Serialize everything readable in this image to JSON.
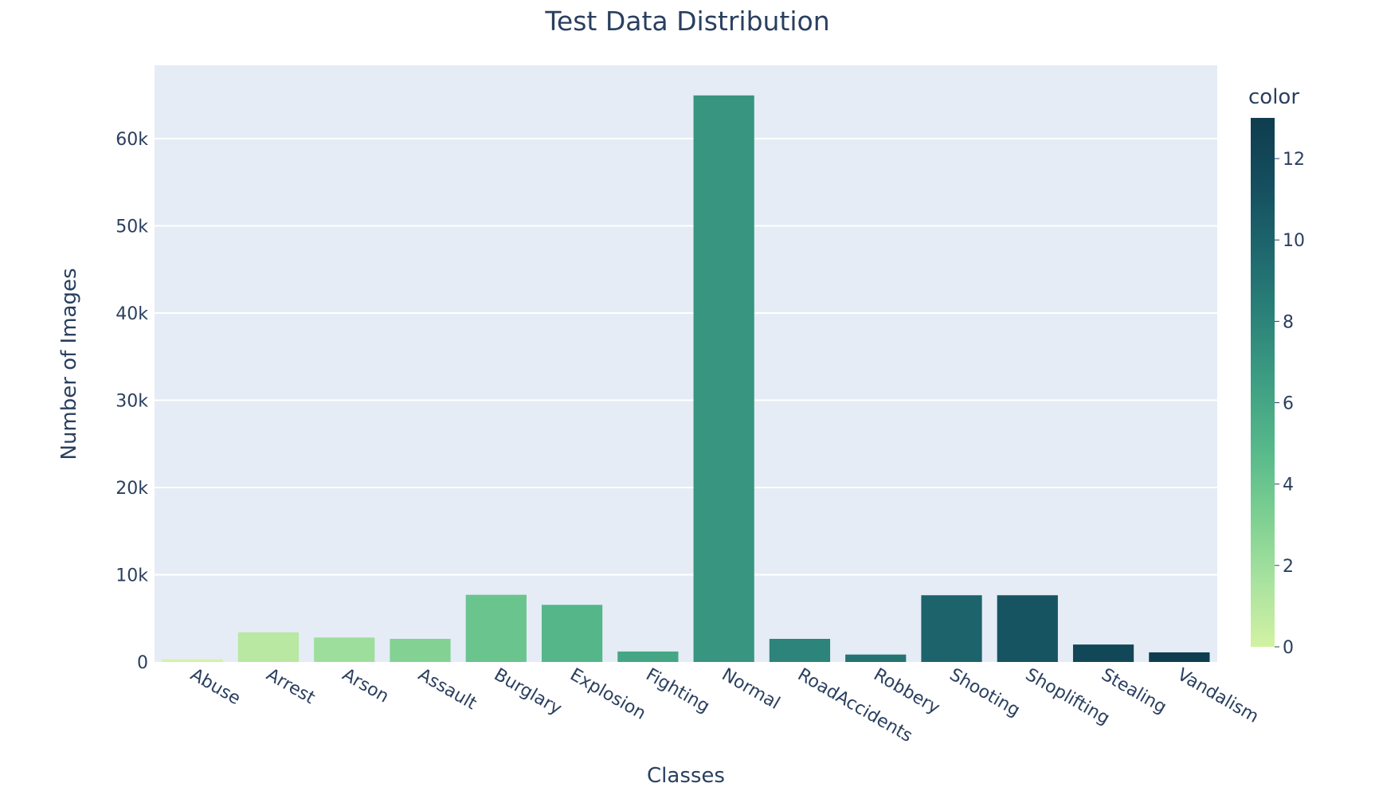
{
  "chart_data": {
    "type": "bar",
    "title": "Test Data Distribution",
    "xlabel": "Classes",
    "ylabel": "Number of Images",
    "categories": [
      "Abuse",
      "Arrest",
      "Arson",
      "Assault",
      "Burglary",
      "Explosion",
      "Fighting",
      "Normal",
      "RoadAccidents",
      "Robbery",
      "Shooting",
      "Shoplifting",
      "Stealing",
      "Vandalism"
    ],
    "values": [
      300,
      3400,
      2800,
      2650,
      7700,
      6550,
      1200,
      64950,
      2650,
      850,
      7650,
      7650,
      2000,
      1100
    ],
    "color_values": [
      0,
      1,
      2,
      3,
      4,
      5,
      6,
      7,
      8,
      9,
      10,
      11,
      12,
      13
    ],
    "ylim": [
      0,
      68400
    ],
    "yticks": [
      0,
      10000,
      20000,
      30000,
      40000,
      50000,
      60000
    ],
    "ytick_labels": [
      "0",
      "10k",
      "20k",
      "30k",
      "40k",
      "50k",
      "60k"
    ],
    "grid": true,
    "colorbar": {
      "title": "color",
      "range": [
        0,
        13
      ],
      "ticks": [
        0,
        2,
        4,
        6,
        8,
        10,
        12
      ],
      "tick_labels": [
        "0",
        "2",
        "4",
        "6",
        "8",
        "10",
        "12"
      ],
      "colorscale": [
        "#d2f2a3",
        "#a8e29f",
        "#7ccf91",
        "#56b88a",
        "#3e9e83",
        "#2b8279",
        "#1e676e",
        "#154e5e",
        "#0e3d4f"
      ]
    },
    "plot_background": "#e5ecf6",
    "grid_color": "#ffffff",
    "text_color": "#2a3f5f"
  }
}
